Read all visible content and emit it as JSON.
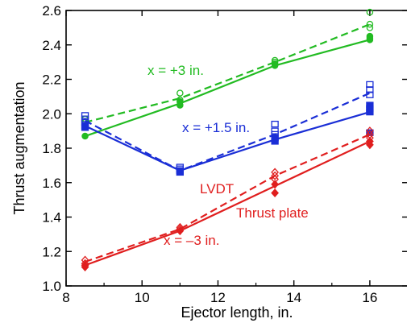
{
  "chart_data": {
    "type": "scatter",
    "xlabel": "Ejector length, in.",
    "ylabel": "Thrust augmentation",
    "xlim": [
      8,
      17
    ],
    "ylim": [
      1.0,
      2.6
    ],
    "x_ticks": [
      "8",
      "10",
      "12",
      "14",
      "16"
    ],
    "y_ticks": [
      "1.0",
      "1.2",
      "1.4",
      "1.6",
      "1.8",
      "2.0",
      "2.2",
      "2.4",
      "2.6"
    ],
    "grid": false,
    "legend": "none",
    "series": [
      {
        "name": "x = +3 in.",
        "color": "#22bb22",
        "x": [
          8.5,
          11,
          13.5,
          16
        ],
        "lvdt_line": [
          1.95,
          2.09,
          2.3,
          2.52
        ],
        "plate_line": [
          1.87,
          2.06,
          2.28,
          2.43
        ],
        "lvdt_points": [
          [
            8.5,
            1.97
          ],
          [
            8.5,
            1.95
          ],
          [
            11,
            2.12
          ],
          [
            11,
            2.08
          ],
          [
            13.5,
            2.31
          ],
          [
            13.5,
            2.3
          ],
          [
            16,
            2.59
          ],
          [
            16,
            2.52
          ],
          [
            16,
            2.5
          ]
        ],
        "plate_points": [
          [
            8.5,
            1.87
          ],
          [
            11,
            2.07
          ],
          [
            11,
            2.05
          ],
          [
            13.5,
            2.29
          ],
          [
            13.5,
            2.28
          ],
          [
            16,
            2.45
          ],
          [
            16,
            2.44
          ],
          [
            16,
            2.43
          ]
        ],
        "marker": "circle"
      },
      {
        "name": "x = +1.5 in.",
        "color": "#1a2ed6",
        "x": [
          8.5,
          11,
          13.5,
          16
        ],
        "lvdt_line": [
          1.96,
          1.67,
          1.88,
          2.12
        ],
        "plate_line": [
          1.93,
          1.67,
          1.85,
          2.01
        ],
        "lvdt_points": [
          [
            8.5,
            1.99
          ],
          [
            8.5,
            1.97
          ],
          [
            8.5,
            1.95
          ],
          [
            11,
            1.69
          ],
          [
            11,
            1.68
          ],
          [
            13.5,
            1.94
          ],
          [
            13.5,
            1.9
          ],
          [
            13.5,
            1.88
          ],
          [
            16,
            2.17
          ],
          [
            16,
            2.14
          ],
          [
            16,
            2.11
          ]
        ],
        "plate_points": [
          [
            8.5,
            1.93
          ],
          [
            8.5,
            1.92
          ],
          [
            11,
            1.67
          ],
          [
            11,
            1.66
          ],
          [
            13.5,
            1.86
          ],
          [
            13.5,
            1.84
          ],
          [
            16,
            2.05
          ],
          [
            16,
            2.03
          ],
          [
            16,
            2.01
          ],
          [
            16,
            1.89
          ]
        ],
        "marker": "square"
      },
      {
        "name": "x = –3 in.",
        "color": "#e01e1e",
        "x": [
          8.5,
          11,
          13.5,
          16
        ],
        "lvdt_line": [
          1.14,
          1.33,
          1.64,
          1.88
        ],
        "plate_line": [
          1.12,
          1.32,
          1.58,
          1.84
        ],
        "lvdt_points": [
          [
            8.5,
            1.15
          ],
          [
            8.5,
            1.13
          ],
          [
            11,
            1.34
          ],
          [
            11,
            1.33
          ],
          [
            13.5,
            1.66
          ],
          [
            13.5,
            1.64
          ],
          [
            13.5,
            1.62
          ],
          [
            16,
            1.9
          ],
          [
            16,
            1.88
          ],
          [
            16,
            1.86
          ]
        ],
        "plate_points": [
          [
            8.5,
            1.12
          ],
          [
            8.5,
            1.11
          ],
          [
            11,
            1.32
          ],
          [
            13.5,
            1.59
          ],
          [
            13.5,
            1.54
          ],
          [
            16,
            1.84
          ],
          [
            16,
            1.82
          ]
        ],
        "marker": "diamond"
      }
    ]
  },
  "annotations": {
    "green_label": "x = +3 in.",
    "blue_label": "x = +1.5 in.",
    "red_label": "x = –3 in.",
    "lvdt_label": "LVDT",
    "plate_label": "Thrust plate"
  }
}
